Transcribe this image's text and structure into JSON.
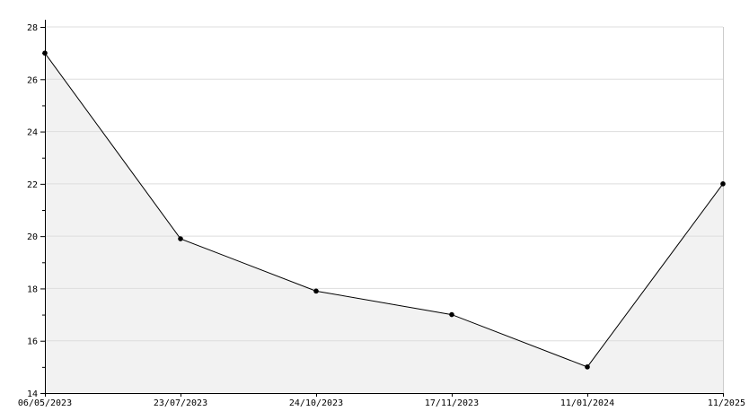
{
  "chart_data": {
    "type": "area",
    "title": "",
    "xlabel": "",
    "ylabel": "",
    "categories": [
      "06/05/2023",
      "23/07/2023",
      "24/10/2023",
      "17/11/2023",
      "11/01/2024",
      "11/2025"
    ],
    "series": [
      {
        "values": [
          27,
          19.9,
          17.9,
          17,
          15,
          22
        ]
      }
    ],
    "ylim": [
      14,
      28
    ],
    "yticks": [
      14,
      16,
      18,
      20,
      22,
      24,
      26,
      28
    ],
    "grid": true,
    "legend": "none",
    "colors": {
      "line": "#000000",
      "fill": "#f2f2f2",
      "grid": "#dddddd",
      "marker": "#000000"
    }
  }
}
